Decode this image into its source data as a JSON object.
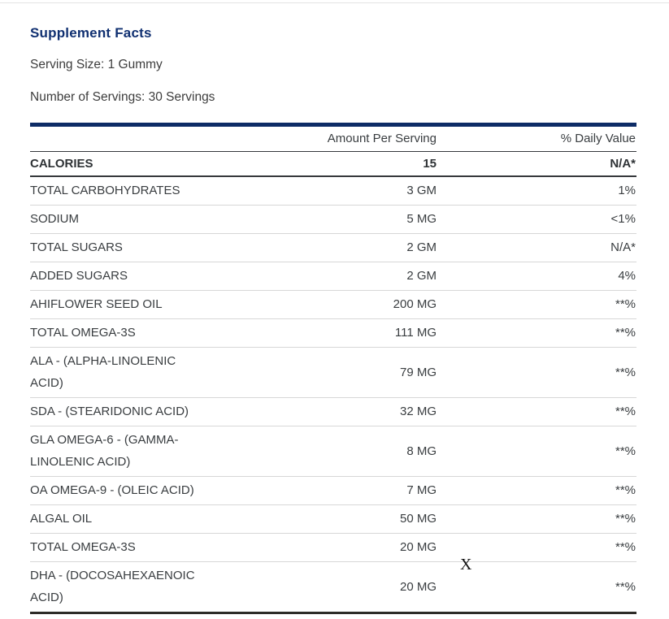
{
  "page": {
    "title": "Supplement Facts",
    "serving_size": "Serving Size: 1 Gummy",
    "number_of_servings": "Number of Servings: 30 Servings",
    "stray_mark": "X"
  },
  "colors": {
    "title_navy": "#103071",
    "table_top_bar_navy": "#0d2c66",
    "body_text": "#3d3d3d",
    "table_text": "#393d40",
    "light_row_divider": "#d7d7d7",
    "dark_row_divider": "#35383b",
    "table_bottom_border": "#2d2b27"
  },
  "table": {
    "headers": {
      "amount": "Amount Per Serving",
      "daily_value": "% Daily Value"
    },
    "rows": [
      {
        "name": "CALORIES",
        "amount": "15",
        "daily_value": "N/A*",
        "bold": true
      },
      {
        "name": "TOTAL CARBOHYDRATES",
        "amount": "3 GM",
        "daily_value": "1%"
      },
      {
        "name": "SODIUM",
        "amount": "5 MG",
        "daily_value": "<1%"
      },
      {
        "name": "TOTAL SUGARS",
        "amount": "2 GM",
        "daily_value": "N/A*"
      },
      {
        "name": "ADDED SUGARS",
        "amount": "2 GM",
        "daily_value": "4%"
      },
      {
        "name": "AHIFLOWER SEED OIL",
        "amount": "200 MG",
        "daily_value": "**%"
      },
      {
        "name": "TOTAL OMEGA-3S",
        "amount": "111 MG",
        "daily_value": "**%"
      },
      {
        "name": "ALA  - (ALPHA-LINOLENIC\nACID)",
        "amount": "79 MG",
        "daily_value": "**%"
      },
      {
        "name": "SDA  - (STEARIDONIC ACID)",
        "amount": "32 MG",
        "daily_value": "**%"
      },
      {
        "name": "GLA OMEGA-6  - (GAMMA-\nLINOLENIC ACID)",
        "amount": "8 MG",
        "daily_value": "**%"
      },
      {
        "name": "OA OMEGA-9  - (OLEIC ACID)",
        "amount": "7 MG",
        "daily_value": "**%"
      },
      {
        "name": "ALGAL OIL",
        "amount": "50 MG",
        "daily_value": "**%"
      },
      {
        "name": "TOTAL OMEGA-3S",
        "amount": "20 MG",
        "daily_value": "**%"
      },
      {
        "name": "DHA  - (DOCOSAHEXAENOIC\nACID)",
        "amount": "20 MG",
        "daily_value": "**%"
      }
    ]
  }
}
